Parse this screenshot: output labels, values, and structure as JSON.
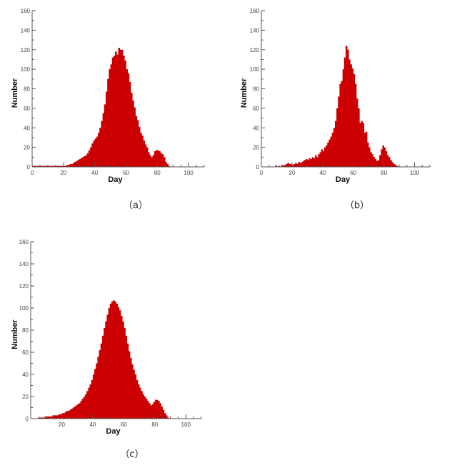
{
  "chart_data": [
    {
      "type": "bar",
      "caption": "（a）",
      "xlabel": "Day",
      "ylabel": "Number",
      "xlim": [
        0,
        110
      ],
      "ylim": [
        0,
        160
      ],
      "xticks": [
        0,
        20,
        40,
        60,
        80,
        100
      ],
      "xtick_labels": [
        "0",
        "20",
        "40",
        "60",
        "80",
        "100"
      ],
      "yticks": [
        0,
        20,
        40,
        60,
        80,
        100,
        120,
        140,
        160
      ],
      "color": "#cc0000",
      "x_start": 0,
      "bin_width": 1,
      "values": [
        1,
        1,
        1,
        1,
        1,
        1,
        1,
        1,
        1,
        1,
        1,
        1,
        1,
        1,
        1,
        1,
        1,
        1,
        1,
        1,
        1,
        1,
        2,
        2,
        3,
        3,
        4,
        5,
        6,
        7,
        8,
        9,
        10,
        11,
        12,
        14,
        17,
        20,
        24,
        27,
        29,
        31,
        35,
        40,
        47,
        55,
        64,
        77,
        90,
        100,
        105,
        112,
        114,
        118,
        115,
        122,
        120,
        120,
        114,
        109,
        100,
        96,
        87,
        76,
        68,
        61,
        52,
        48,
        41,
        35,
        32,
        27,
        23,
        20,
        15,
        12,
        10,
        12,
        16,
        17,
        17,
        16,
        14,
        13,
        10,
        5,
        3,
        1,
        0,
        0
      ]
    },
    {
      "type": "bar",
      "caption": "（b）",
      "xlabel": "Day",
      "ylabel": "Number",
      "xlim": [
        0,
        110
      ],
      "ylim": [
        0,
        160
      ],
      "xticks": [
        0,
        20,
        40,
        60,
        80,
        100
      ],
      "xtick_labels": [
        "0",
        "20",
        "40",
        "60",
        "80",
        "100"
      ],
      "yticks": [
        0,
        20,
        40,
        60,
        80,
        100,
        120,
        140,
        160
      ],
      "color": "#cc0000",
      "x_start": 0,
      "bin_width": 1,
      "values": [
        0,
        0,
        0,
        0,
        0,
        0,
        0,
        0,
        0,
        1,
        0,
        1,
        0,
        2,
        1,
        2,
        3,
        4,
        3,
        3,
        2,
        3,
        4,
        3,
        5,
        4,
        5,
        6,
        7,
        8,
        7,
        9,
        8,
        10,
        9,
        12,
        10,
        13,
        15,
        18,
        16,
        20,
        22,
        25,
        28,
        31,
        35,
        40,
        47,
        60,
        72,
        85,
        88,
        100,
        112,
        124,
        120,
        110,
        105,
        101,
        95,
        85,
        70,
        60,
        45,
        47,
        45,
        35,
        36,
        25,
        20,
        15,
        13,
        10,
        8,
        6,
        7,
        12,
        18,
        22,
        20,
        16,
        12,
        10,
        7,
        5,
        3,
        2,
        1,
        0,
        0
      ]
    },
    {
      "type": "bar",
      "caption": "（c）",
      "xlabel": "Day",
      "ylabel": "Number",
      "xlim": [
        0,
        110
      ],
      "ylim": [
        0,
        160
      ],
      "xticks": [
        20,
        40,
        60,
        80,
        100
      ],
      "xtick_labels": [
        "20",
        "40",
        "60",
        "80",
        "100"
      ],
      "yticks": [
        0,
        20,
        40,
        60,
        80,
        100,
        120,
        140,
        160
      ],
      "color": "#cc0000",
      "x_start": 0,
      "bin_width": 1,
      "values": [
        0,
        0,
        0,
        0,
        0,
        1,
        1,
        1,
        1,
        2,
        2,
        2,
        2,
        2,
        3,
        3,
        3,
        3,
        4,
        4,
        5,
        5,
        6,
        7,
        7,
        8,
        9,
        10,
        11,
        12,
        13,
        14,
        16,
        18,
        20,
        22,
        25,
        28,
        31,
        35,
        40,
        45,
        50,
        56,
        62,
        68,
        75,
        82,
        88,
        94,
        100,
        104,
        106,
        107,
        106,
        104,
        101,
        98,
        93,
        88,
        82,
        75,
        68,
        61,
        55,
        49,
        44,
        40,
        35,
        31,
        28,
        25,
        22,
        20,
        18,
        16,
        14,
        12,
        13,
        15,
        17,
        17,
        16,
        14,
        11,
        8,
        5,
        3,
        1,
        0,
        0
      ]
    }
  ]
}
